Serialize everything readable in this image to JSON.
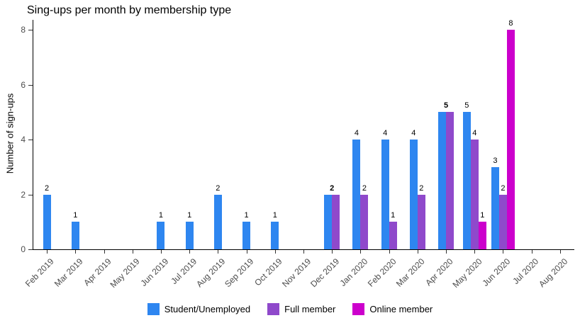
{
  "chart_data": {
    "type": "bar",
    "title": "Sing-ups per month by membership type",
    "xlabel": "",
    "ylabel": "Number of sign-ups",
    "ylim": [
      0,
      8
    ],
    "yticks": [
      0,
      2,
      4,
      6,
      8
    ],
    "grid": false,
    "legend_position": "bottom",
    "categories": [
      "Feb 2019",
      "Mar 2019",
      "Apr 2019",
      "May 2019",
      "Jun 2019",
      "Jul 2019",
      "Aug 2019",
      "Sep 2019",
      "Oct 2019",
      "Nov 2019",
      "Dec 2019",
      "Jan 2020",
      "Feb 2020",
      "Mar 2020",
      "Apr 2020",
      "May 2020",
      "Jun 2020",
      "Jul 2020",
      "Aug 2020"
    ],
    "series": [
      {
        "name": "Student/Unemployed",
        "color": "#2E86F0",
        "values": [
          2,
          1,
          0,
          0,
          1,
          1,
          2,
          1,
          1,
          0,
          2,
          4,
          4,
          4,
          5,
          5,
          3,
          0,
          0
        ]
      },
      {
        "name": "Full member",
        "color": "#8F49CB",
        "values": [
          0,
          0,
          0,
          0,
          0,
          0,
          0,
          0,
          0,
          0,
          2,
          2,
          1,
          2,
          5,
          4,
          2,
          0,
          0
        ]
      },
      {
        "name": "Online member",
        "color": "#CC00CC",
        "values": [
          0,
          0,
          0,
          0,
          0,
          0,
          0,
          0,
          0,
          0,
          0,
          0,
          0,
          0,
          0,
          1,
          8,
          0,
          0
        ]
      }
    ],
    "value_labels": [
      {
        "c": 0,
        "s": 0,
        "t": "2"
      },
      {
        "c": 1,
        "s": 0,
        "t": "1"
      },
      {
        "c": 4,
        "s": 0,
        "t": "1"
      },
      {
        "c": 5,
        "s": 0,
        "t": "1"
      },
      {
        "c": 6,
        "s": 0,
        "t": "2"
      },
      {
        "c": 7,
        "s": 0,
        "t": "1"
      },
      {
        "c": 8,
        "s": 0,
        "t": "1"
      },
      {
        "c": 10,
        "s": "center",
        "t": "2",
        "bold": true
      },
      {
        "c": 11,
        "s": 0,
        "t": "4"
      },
      {
        "c": 11,
        "s": 1,
        "t": "2"
      },
      {
        "c": 12,
        "s": 0,
        "t": "4"
      },
      {
        "c": 12,
        "s": 1,
        "t": "1"
      },
      {
        "c": 13,
        "s": 0,
        "t": "4"
      },
      {
        "c": 13,
        "s": 1,
        "t": "2"
      },
      {
        "c": 14,
        "s": "center",
        "t": "5",
        "bold": true
      },
      {
        "c": 15,
        "s": 0,
        "t": "5"
      },
      {
        "c": 15,
        "s": 1,
        "t": "4"
      },
      {
        "c": 15,
        "s": 2,
        "t": "1"
      },
      {
        "c": 16,
        "s": 0,
        "t": "3"
      },
      {
        "c": 16,
        "s": 1,
        "t": "2"
      },
      {
        "c": 16,
        "s": 2,
        "t": "8"
      }
    ]
  }
}
